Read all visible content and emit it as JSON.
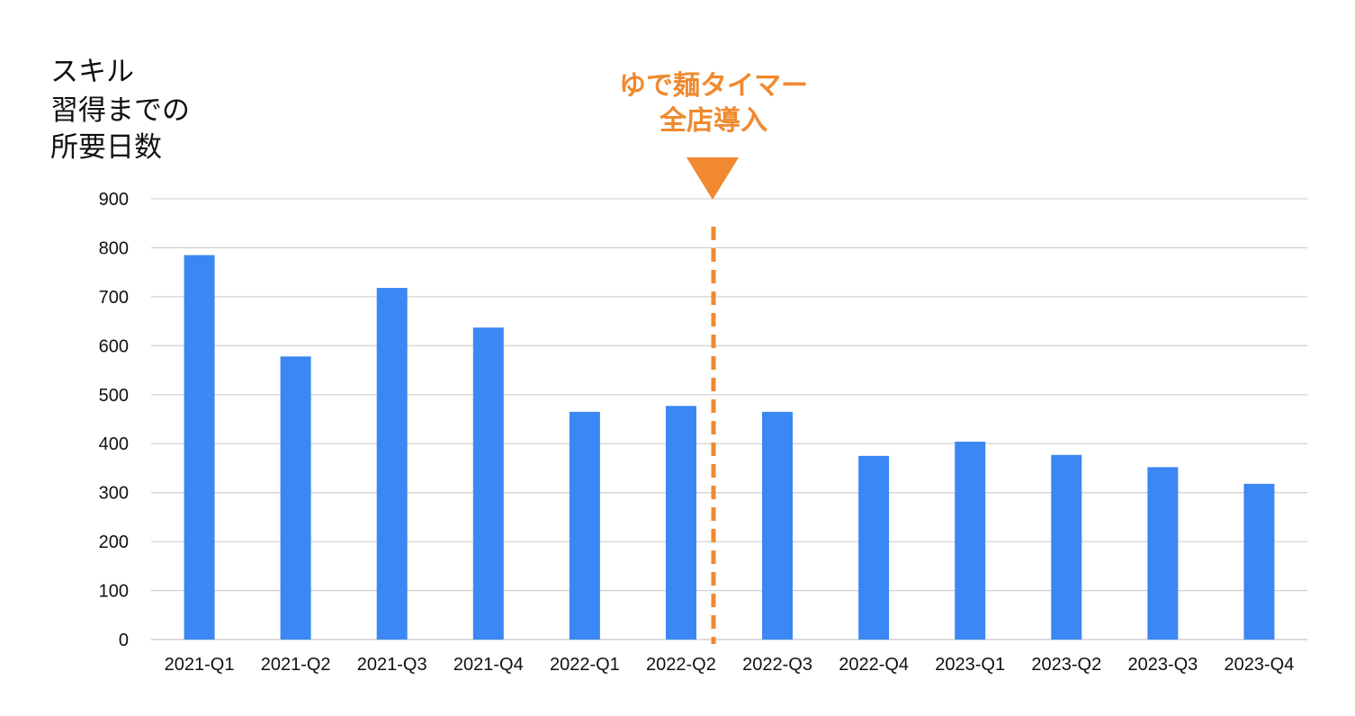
{
  "chart_data": {
    "type": "bar",
    "ylabel_lines": [
      "スキル",
      "習得までの",
      "所要日数"
    ],
    "xlabel": "",
    "categories": [
      "2021-Q1",
      "2021-Q2",
      "2021-Q3",
      "2021-Q4",
      "2022-Q1",
      "2022-Q2",
      "2022-Q3",
      "2022-Q4",
      "2023-Q1",
      "2023-Q2",
      "2023-Q3",
      "2023-Q4"
    ],
    "values": [
      785,
      578,
      718,
      637,
      465,
      477,
      465,
      375,
      404,
      377,
      352,
      318
    ],
    "ylim": [
      0,
      900
    ],
    "yticks": [
      0,
      100,
      200,
      300,
      400,
      500,
      600,
      700,
      800,
      900
    ],
    "grid": true,
    "bar_color": "#3b87f4",
    "annotation": {
      "lines": [
        "ゆで麺タイマー",
        "全店導入"
      ],
      "color": "#f0892f",
      "between_categories": [
        "2022-Q2",
        "2022-Q3"
      ]
    }
  }
}
